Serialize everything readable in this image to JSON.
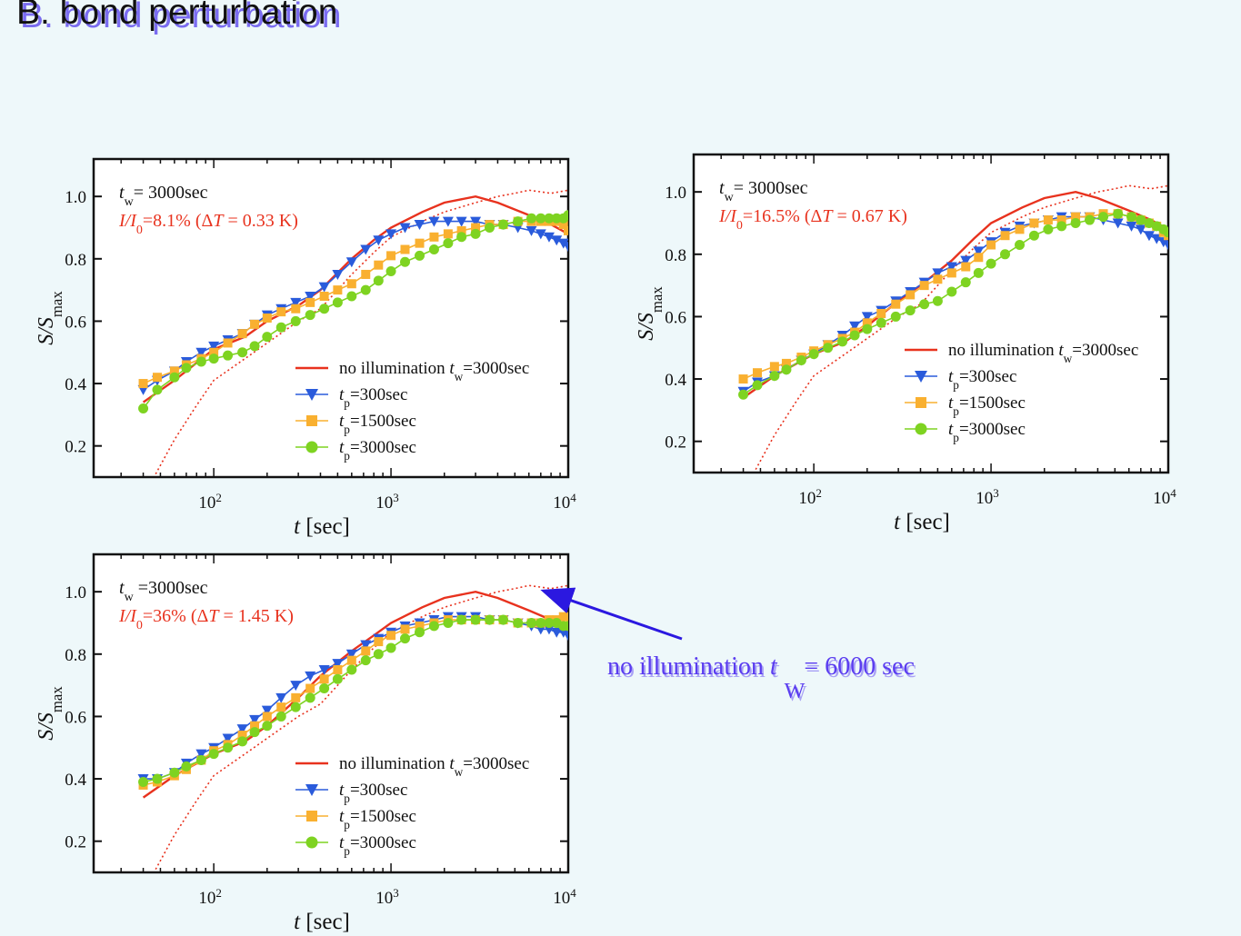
{
  "slide_title": "B. bond perturbation",
  "annotation": {
    "text_before": "no illumination ",
    "t_symbol": "t",
    "subscript": "W",
    "text_after": " = 6000 sec"
  },
  "colors": {
    "no_illumination": "#e8321e",
    "no_illumination_6000": "#e8321e",
    "tp300": "#2a5bdb",
    "tp1500": "#f9b030",
    "tp3000": "#7ed321",
    "annotation": "#5a3cf0",
    "arrow": "#2b18e0"
  },
  "chart_data": [
    {
      "type": "line",
      "info_line1": "t_w= 3000sec",
      "info_line2": "I/I0=8.1% (ΔT = 0.33 K)",
      "xlabel": "t [sec]",
      "ylabel": "S/S_max",
      "x_scale": "log",
      "xlim": [
        21,
        10000
      ],
      "ylim": [
        0.1,
        1.12
      ],
      "yticks": [
        "0.2",
        "0.4",
        "0.6",
        "0.8",
        "1.0"
      ],
      "xticks": [
        "10^2",
        "10^3",
        "10^4"
      ],
      "legend_position": "bottom-right",
      "series": [
        {
          "name": "no illumination t_w=3000sec",
          "style": "solid",
          "x": [
            40,
            60,
            100,
            150,
            200,
            300,
            400,
            600,
            800,
            1000,
            1500,
            2000,
            3000,
            4000,
            6000,
            8000,
            10000
          ],
          "y": [
            0.34,
            0.41,
            0.51,
            0.55,
            0.6,
            0.65,
            0.7,
            0.8,
            0.86,
            0.9,
            0.95,
            0.98,
            1.0,
            0.98,
            0.94,
            0.91,
            0.88
          ]
        },
        {
          "name": "",
          "style": "dotted",
          "x": [
            47,
            60,
            80,
            100,
            150,
            200,
            300,
            400,
            500,
            600,
            800,
            1000,
            1500,
            2000,
            3000,
            4000,
            5000,
            6000,
            8000,
            10000
          ],
          "y": [
            0.11,
            0.22,
            0.33,
            0.41,
            0.48,
            0.53,
            0.6,
            0.64,
            0.7,
            0.75,
            0.82,
            0.87,
            0.92,
            0.95,
            0.98,
            1.0,
            1.01,
            1.02,
            1.01,
            1.02
          ]
        },
        {
          "name": "t_p=300sec",
          "marker": "triangle-down",
          "x": [
            40,
            48,
            60,
            70,
            85,
            100,
            120,
            145,
            170,
            200,
            240,
            290,
            350,
            420,
            500,
            600,
            720,
            850,
            1000,
            1200,
            1450,
            1750,
            2100,
            2500,
            3000,
            3600,
            4300,
            5200,
            6200,
            7000,
            7800,
            8600,
            9400,
            10000
          ],
          "y": [
            0.38,
            0.41,
            0.44,
            0.47,
            0.5,
            0.52,
            0.54,
            0.56,
            0.59,
            0.62,
            0.64,
            0.66,
            0.68,
            0.71,
            0.75,
            0.79,
            0.83,
            0.86,
            0.88,
            0.9,
            0.91,
            0.92,
            0.92,
            0.92,
            0.92,
            0.91,
            0.91,
            0.9,
            0.89,
            0.88,
            0.87,
            0.86,
            0.85,
            0.84
          ]
        },
        {
          "name": "t_p=1500sec",
          "marker": "square",
          "x": [
            40,
            48,
            60,
            70,
            85,
            100,
            120,
            145,
            170,
            200,
            240,
            290,
            350,
            420,
            500,
            600,
            720,
            850,
            1000,
            1200,
            1450,
            1750,
            2100,
            2500,
            3000,
            3600,
            4300,
            5200,
            6200,
            7000,
            7800,
            8600,
            9400,
            10000
          ],
          "y": [
            0.4,
            0.42,
            0.44,
            0.46,
            0.48,
            0.5,
            0.53,
            0.56,
            0.59,
            0.61,
            0.63,
            0.64,
            0.66,
            0.68,
            0.7,
            0.72,
            0.75,
            0.78,
            0.81,
            0.83,
            0.85,
            0.87,
            0.88,
            0.89,
            0.9,
            0.91,
            0.91,
            0.92,
            0.92,
            0.92,
            0.92,
            0.92,
            0.91,
            0.89
          ]
        },
        {
          "name": "t_p=3000sec",
          "marker": "circle",
          "x": [
            40,
            48,
            60,
            70,
            85,
            100,
            120,
            145,
            170,
            200,
            240,
            290,
            350,
            420,
            500,
            600,
            720,
            850,
            1000,
            1200,
            1450,
            1750,
            2100,
            2500,
            3000,
            3600,
            4300,
            5200,
            6200,
            7000,
            7800,
            8600,
            9400,
            10000
          ],
          "y": [
            0.32,
            0.38,
            0.42,
            0.45,
            0.47,
            0.48,
            0.49,
            0.5,
            0.52,
            0.55,
            0.58,
            0.6,
            0.62,
            0.64,
            0.66,
            0.68,
            0.7,
            0.73,
            0.76,
            0.79,
            0.81,
            0.83,
            0.85,
            0.87,
            0.88,
            0.9,
            0.91,
            0.92,
            0.93,
            0.93,
            0.93,
            0.93,
            0.93,
            0.94
          ]
        }
      ]
    },
    {
      "type": "line",
      "info_line1": "t_w= 3000sec",
      "info_line2": "I/I0=16.5% (ΔT = 0.67 K)",
      "xlabel": "t [sec]",
      "ylabel": "S/S_max",
      "x_scale": "log",
      "xlim": [
        21,
        10000
      ],
      "ylim": [
        0.1,
        1.12
      ],
      "yticks": [
        "0.2",
        "0.4",
        "0.6",
        "0.8",
        "1.0"
      ],
      "xticks": [
        "10^2",
        "10^3",
        "10^4"
      ],
      "legend_position": "right",
      "series": [
        {
          "name": "no illumination t_w=3000sec",
          "style": "solid",
          "x": [
            40,
            60,
            100,
            150,
            200,
            300,
            400,
            600,
            800,
            1000,
            1500,
            2000,
            3000,
            4000,
            6000,
            8000,
            10000
          ],
          "y": [
            0.34,
            0.41,
            0.48,
            0.52,
            0.57,
            0.65,
            0.7,
            0.78,
            0.85,
            0.9,
            0.95,
            0.98,
            1.0,
            0.98,
            0.94,
            0.91,
            0.88
          ]
        },
        {
          "name": "",
          "style": "dotted",
          "x": [
            47,
            60,
            80,
            100,
            150,
            200,
            300,
            400,
            500,
            600,
            800,
            1000,
            1500,
            2000,
            3000,
            4000,
            5000,
            6000,
            8000,
            10000
          ],
          "y": [
            0.11,
            0.22,
            0.33,
            0.41,
            0.48,
            0.53,
            0.6,
            0.64,
            0.7,
            0.75,
            0.82,
            0.87,
            0.92,
            0.95,
            0.98,
            1.0,
            1.01,
            1.02,
            1.01,
            1.02
          ]
        },
        {
          "name": "t_p=300sec",
          "marker": "triangle-down",
          "x": [
            40,
            48,
            60,
            70,
            85,
            100,
            120,
            145,
            170,
            200,
            240,
            290,
            350,
            420,
            500,
            600,
            720,
            850,
            1000,
            1200,
            1450,
            1750,
            2100,
            2500,
            3000,
            3600,
            4300,
            5200,
            6200,
            7000,
            7800,
            8600,
            9400,
            10000
          ],
          "y": [
            0.36,
            0.39,
            0.41,
            0.43,
            0.46,
            0.48,
            0.51,
            0.54,
            0.57,
            0.6,
            0.62,
            0.65,
            0.68,
            0.71,
            0.74,
            0.76,
            0.78,
            0.81,
            0.84,
            0.87,
            0.89,
            0.9,
            0.91,
            0.92,
            0.92,
            0.92,
            0.91,
            0.9,
            0.89,
            0.88,
            0.86,
            0.85,
            0.84,
            0.83
          ]
        },
        {
          "name": "t_p=1500sec",
          "marker": "square",
          "x": [
            40,
            48,
            60,
            70,
            85,
            100,
            120,
            145,
            170,
            200,
            240,
            290,
            350,
            420,
            500,
            600,
            720,
            850,
            1000,
            1200,
            1450,
            1750,
            2100,
            2500,
            3000,
            3600,
            4300,
            5200,
            6200,
            7000,
            7800,
            8600,
            9400,
            10000
          ],
          "y": [
            0.4,
            0.42,
            0.44,
            0.45,
            0.47,
            0.49,
            0.51,
            0.53,
            0.55,
            0.58,
            0.61,
            0.64,
            0.67,
            0.7,
            0.72,
            0.74,
            0.76,
            0.79,
            0.83,
            0.86,
            0.88,
            0.9,
            0.91,
            0.91,
            0.92,
            0.92,
            0.93,
            0.93,
            0.92,
            0.91,
            0.9,
            0.89,
            0.87,
            0.86
          ]
        },
        {
          "name": "t_p=3000sec",
          "marker": "circle",
          "x": [
            40,
            48,
            60,
            70,
            85,
            100,
            120,
            145,
            170,
            200,
            240,
            290,
            350,
            420,
            500,
            600,
            720,
            850,
            1000,
            1200,
            1450,
            1750,
            2100,
            2500,
            3000,
            3600,
            4300,
            5200,
            6200,
            7000,
            7800,
            8600,
            9400,
            10000
          ],
          "y": [
            0.35,
            0.38,
            0.41,
            0.43,
            0.46,
            0.48,
            0.5,
            0.52,
            0.54,
            0.56,
            0.58,
            0.6,
            0.62,
            0.64,
            0.65,
            0.68,
            0.71,
            0.74,
            0.77,
            0.8,
            0.83,
            0.86,
            0.88,
            0.89,
            0.9,
            0.91,
            0.92,
            0.93,
            0.92,
            0.91,
            0.9,
            0.89,
            0.88,
            0.87
          ]
        }
      ]
    },
    {
      "type": "line",
      "info_line1": "t_w =3000sec",
      "info_line2": "I/I0=36% (ΔT = 1.45 K)",
      "xlabel": "t [sec]",
      "ylabel": "S/S_max",
      "x_scale": "log",
      "xlim": [
        21,
        10000
      ],
      "ylim": [
        0.1,
        1.12
      ],
      "yticks": [
        "0.2",
        "0.4",
        "0.6",
        "0.8",
        "1.0"
      ],
      "xticks": [
        "10^2",
        "10^3",
        "10^4"
      ],
      "legend_position": "bottom-right",
      "series": [
        {
          "name": "no illumination t_w=3000sec",
          "style": "solid",
          "x": [
            40,
            60,
            100,
            150,
            200,
            300,
            400,
            600,
            800,
            1000,
            1500,
            2000,
            3000,
            4000,
            6000,
            8000,
            10000
          ],
          "y": [
            0.34,
            0.41,
            0.48,
            0.52,
            0.57,
            0.66,
            0.73,
            0.81,
            0.86,
            0.9,
            0.95,
            0.98,
            1.0,
            0.98,
            0.94,
            0.91,
            0.88
          ]
        },
        {
          "name": "",
          "style": "dotted",
          "x": [
            47,
            60,
            80,
            100,
            150,
            200,
            300,
            400,
            500,
            600,
            800,
            1000,
            1500,
            2000,
            3000,
            4000,
            5000,
            6000,
            8000,
            10000
          ],
          "y": [
            0.11,
            0.22,
            0.33,
            0.41,
            0.48,
            0.53,
            0.6,
            0.64,
            0.7,
            0.75,
            0.82,
            0.87,
            0.92,
            0.95,
            0.98,
            1.0,
            1.01,
            1.02,
            1.01,
            1.02
          ]
        },
        {
          "name": "t_p=300sec",
          "marker": "triangle-down",
          "x": [
            40,
            48,
            60,
            70,
            85,
            100,
            120,
            145,
            170,
            200,
            240,
            290,
            350,
            420,
            500,
            600,
            720,
            850,
            1000,
            1200,
            1450,
            1750,
            2100,
            2500,
            3000,
            3600,
            4300,
            5200,
            6200,
            7000,
            7800,
            8600,
            9400,
            10000
          ],
          "y": [
            0.4,
            0.4,
            0.42,
            0.45,
            0.48,
            0.5,
            0.53,
            0.56,
            0.59,
            0.62,
            0.66,
            0.7,
            0.73,
            0.75,
            0.77,
            0.8,
            0.83,
            0.85,
            0.87,
            0.89,
            0.9,
            0.91,
            0.92,
            0.92,
            0.92,
            0.91,
            0.91,
            0.9,
            0.89,
            0.88,
            0.88,
            0.87,
            0.87,
            0.86
          ]
        },
        {
          "name": "t_p=1500sec",
          "marker": "square",
          "x": [
            40,
            48,
            60,
            70,
            85,
            100,
            120,
            145,
            170,
            200,
            240,
            290,
            350,
            420,
            500,
            600,
            720,
            850,
            1000,
            1200,
            1450,
            1750,
            2100,
            2500,
            3000,
            3600,
            4300,
            5200,
            6200,
            7000,
            7800,
            8600,
            9400,
            10000
          ],
          "y": [
            0.38,
            0.39,
            0.41,
            0.43,
            0.46,
            0.49,
            0.51,
            0.54,
            0.57,
            0.6,
            0.63,
            0.66,
            0.69,
            0.72,
            0.75,
            0.78,
            0.81,
            0.84,
            0.86,
            0.88,
            0.89,
            0.9,
            0.91,
            0.91,
            0.91,
            0.91,
            0.91,
            0.9,
            0.9,
            0.9,
            0.91,
            0.91,
            0.92,
            0.92
          ]
        },
        {
          "name": "t_p=3000sec",
          "marker": "circle",
          "x": [
            40,
            48,
            60,
            70,
            85,
            100,
            120,
            145,
            170,
            200,
            240,
            290,
            350,
            420,
            500,
            600,
            720,
            850,
            1000,
            1200,
            1450,
            1750,
            2100,
            2500,
            3000,
            3600,
            4300,
            5200,
            6200,
            7000,
            7800,
            8600,
            9400,
            10000
          ],
          "y": [
            0.39,
            0.4,
            0.42,
            0.44,
            0.46,
            0.48,
            0.5,
            0.52,
            0.55,
            0.57,
            0.6,
            0.63,
            0.66,
            0.69,
            0.72,
            0.75,
            0.78,
            0.8,
            0.82,
            0.85,
            0.87,
            0.89,
            0.9,
            0.91,
            0.91,
            0.91,
            0.91,
            0.9,
            0.9,
            0.9,
            0.9,
            0.9,
            0.89,
            0.89
          ]
        }
      ]
    }
  ]
}
